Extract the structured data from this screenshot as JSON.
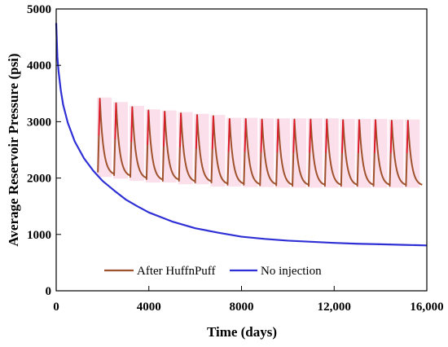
{
  "chart_data": {
    "type": "line",
    "title": "",
    "xlabel": "Time (days)",
    "ylabel": "Average Reservoir  Pressure (psi)",
    "xlim": [
      0,
      16000
    ],
    "ylim": [
      0,
      5000
    ],
    "xticks": [
      0,
      4000,
      8000,
      12000,
      16000
    ],
    "xtick_labels": [
      "0",
      "4000",
      "8000",
      "12,000",
      "16,000"
    ],
    "yticks": [
      0,
      1000,
      2000,
      3000,
      4000,
      5000
    ],
    "ytick_labels": [
      "0",
      "1000",
      "2000",
      "3000",
      "4000",
      "5000"
    ],
    "grid": false,
    "legend_position": "bottom-center",
    "series": [
      {
        "name": "After HuffnPuff",
        "color": "#a0522d",
        "band_color": "#f7c6dd",
        "peak_color": "#e8132a",
        "cycle_start": 1800,
        "cycle_period": 700,
        "peaks": [
          3410,
          3330,
          3260,
          3200,
          3180,
          3150,
          3120,
          3100,
          3050,
          3050,
          3040,
          3040,
          3040,
          3040,
          3040,
          3030,
          3030,
          3030,
          3020,
          3020
        ],
        "troughs": [
          2050,
          2020,
          1980,
          1950,
          1950,
          1920,
          1920,
          1880,
          1880,
          1870,
          1870,
          1860,
          1860,
          1860,
          1860,
          1860,
          1860,
          1860,
          1860,
          1860
        ]
      },
      {
        "name": "No injection",
        "color": "#2f2fd6",
        "x": [
          0,
          50,
          100,
          200,
          300,
          500,
          800,
          1200,
          1600,
          2000,
          2500,
          3000,
          3500,
          4000,
          5000,
          6000,
          7000,
          8000,
          9000,
          10000,
          11000,
          12000,
          13000,
          14000,
          15000,
          16000
        ],
        "y": [
          4750,
          4150,
          3900,
          3550,
          3300,
          2980,
          2650,
          2350,
          2130,
          1950,
          1780,
          1620,
          1500,
          1390,
          1230,
          1110,
          1030,
          960,
          920,
          890,
          870,
          850,
          835,
          825,
          815,
          805
        ]
      }
    ]
  }
}
